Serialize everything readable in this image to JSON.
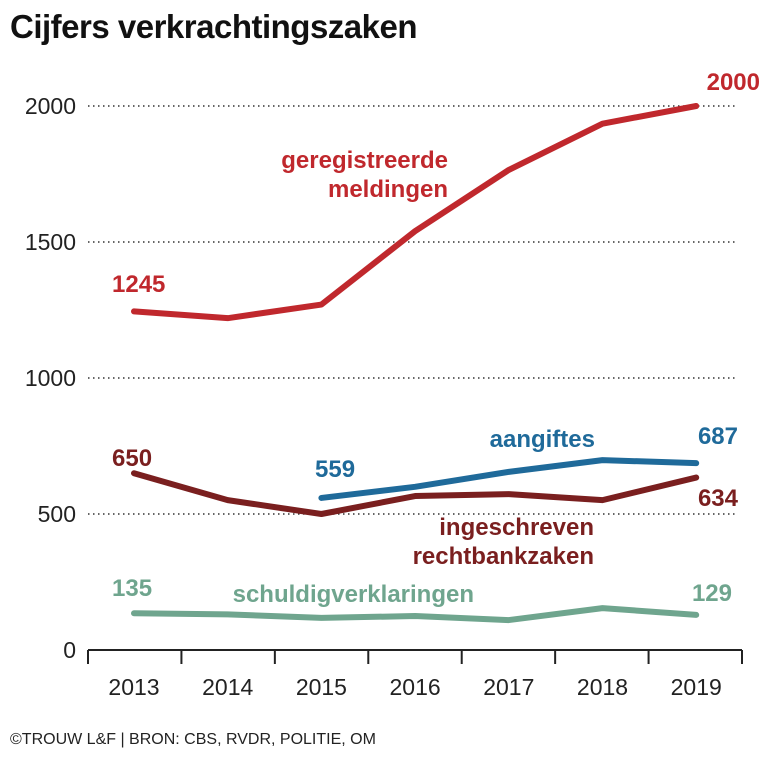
{
  "chart_data": {
    "type": "line",
    "title": "Cijfers verkrachtingszaken",
    "x": [
      "2013",
      "2014",
      "2015",
      "2016",
      "2017",
      "2018",
      "2019"
    ],
    "ylim": [
      0,
      2000
    ],
    "yticks": [
      0,
      500,
      1000,
      1500,
      2000
    ],
    "grid": "horizontal dotted",
    "series": [
      {
        "name": "geregistreerde meldingen",
        "color": "#c0282d",
        "values": [
          1245,
          1220,
          1270,
          1540,
          1765,
          1935,
          2000
        ],
        "labels": {
          "2013": "1245",
          "2019": "2000"
        }
      },
      {
        "name": "aangiftes",
        "color": "#1f6a9a",
        "values": [
          null,
          null,
          559,
          600,
          655,
          698,
          687
        ],
        "labels": {
          "2015": "559",
          "2019": "687"
        }
      },
      {
        "name": "ingeschreven rechtbankzaken",
        "color": "#7a1f1f",
        "values": [
          650,
          551,
          500,
          566,
          573,
          551,
          634
        ],
        "labels": {
          "2013": "650",
          "2019": "634"
        }
      },
      {
        "name": "schuldigverklaringen",
        "color": "#6fa58e",
        "values": [
          135,
          131,
          118,
          125,
          110,
          154,
          129
        ],
        "labels": {
          "2013": "135",
          "2019": "129"
        }
      }
    ]
  },
  "footer": "©TROUW L&F | BRON: CBS, RVDR, POLITIE, OM"
}
